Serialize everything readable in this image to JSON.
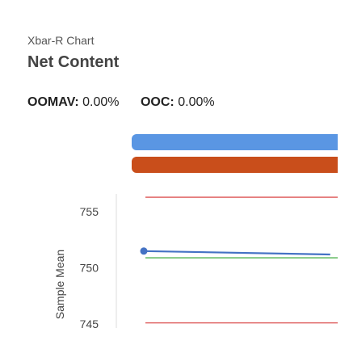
{
  "header": {
    "chart_kind": "Xbar-R Chart",
    "title": "Net Content"
  },
  "metrics": [
    {
      "label": "OOMAV:",
      "value": "0.00%"
    },
    {
      "label": "OOC:",
      "value": "0.00%"
    }
  ],
  "colors": {
    "blue_bar": "#5a96e3",
    "orange_bar": "#c94e1b",
    "series_line": "#4472c4",
    "control_limit": "#e06666",
    "center_line": "#5cb85c",
    "axis": "#dddddd"
  },
  "chart_data": {
    "type": "line",
    "ylabel": "Sample Mean",
    "ylim": [
      744.5,
      756.6
    ],
    "yticks": [
      745,
      750,
      755
    ],
    "series": [
      {
        "points": [
          {
            "x": 1,
            "y": 751.5
          },
          {
            "x": 2,
            "y": 751.2
          }
        ]
      }
    ],
    "limits": [
      {
        "kind": "ucl",
        "value": 756.3
      },
      {
        "kind": "center",
        "value": 750.9
      },
      {
        "kind": "lcl",
        "value": 745.1
      }
    ],
    "xlim": [
      1,
      2.3
    ]
  }
}
